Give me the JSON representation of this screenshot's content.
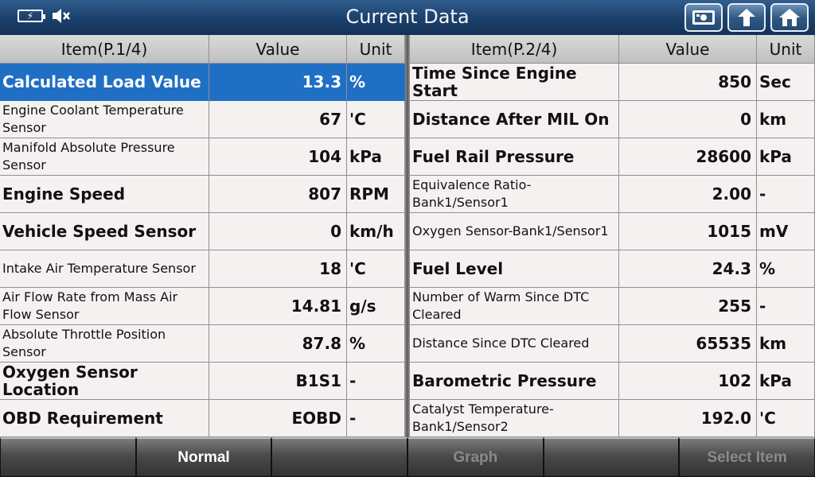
{
  "title": "Current Data",
  "status": {
    "battery_icon": "battery-charging-icon",
    "mute_icon": "speaker-muted-icon"
  },
  "toolbar_icons": [
    "screenshot-icon",
    "back-arrow-icon",
    "home-icon"
  ],
  "left_table": {
    "headers": {
      "item": "Item(P.1/4)",
      "value": "Value",
      "unit": "Unit"
    },
    "rows": [
      {
        "item": "Calculated Load Value",
        "value": "13.3",
        "unit": "%",
        "size": "big",
        "selected": true
      },
      {
        "item": "Engine Coolant Temperature Sensor",
        "value": "67",
        "unit": "'C",
        "size": "small"
      },
      {
        "item": "Manifold Absolute Pressure Sensor",
        "value": "104",
        "unit": "kPa",
        "size": "small"
      },
      {
        "item": "Engine Speed",
        "value": "807",
        "unit": "RPM",
        "size": "big"
      },
      {
        "item": "Vehicle Speed Sensor",
        "value": "0",
        "unit": "km/h",
        "size": "big"
      },
      {
        "item": "Intake Air Temperature Sensor",
        "value": "18",
        "unit": "'C",
        "size": "small"
      },
      {
        "item": "Air Flow Rate from Mass Air Flow Sensor",
        "value": "14.81",
        "unit": "g/s",
        "size": "small"
      },
      {
        "item": "Absolute Throttle Position Sensor",
        "value": "87.8",
        "unit": "%",
        "size": "small"
      },
      {
        "item": "Oxygen Sensor Location",
        "value": "B1S1",
        "unit": "-",
        "size": "big"
      },
      {
        "item": "OBD Requirement",
        "value": "EOBD",
        "unit": "-",
        "size": "big"
      }
    ]
  },
  "right_table": {
    "headers": {
      "item": "Item(P.2/4)",
      "value": "Value",
      "unit": "Unit"
    },
    "rows": [
      {
        "item": "Time Since Engine Start",
        "value": "850",
        "unit": "Sec",
        "size": "big"
      },
      {
        "item": "Distance After MIL On",
        "value": "0",
        "unit": "km",
        "size": "big"
      },
      {
        "item": "Fuel Rail Pressure",
        "value": "28600",
        "unit": "kPa",
        "size": "big"
      },
      {
        "item": "Equivalence Ratio-Bank1/Sensor1",
        "value": "2.00",
        "unit": "-",
        "size": "small"
      },
      {
        "item": "Oxygen Sensor-Bank1/Sensor1",
        "value": "1015",
        "unit": "mV",
        "size": "small"
      },
      {
        "item": "Fuel Level",
        "value": "24.3",
        "unit": "%",
        "size": "big"
      },
      {
        "item": "Number of Warm Since DTC Cleared",
        "value": "255",
        "unit": "-",
        "size": "small"
      },
      {
        "item": "Distance Since DTC Cleared",
        "value": "65535",
        "unit": "km",
        "size": "small"
      },
      {
        "item": "Barometric Pressure",
        "value": "102",
        "unit": "kPa",
        "size": "big"
      },
      {
        "item": "Catalyst Temperature-Bank1/Sensor2",
        "value": "192.0",
        "unit": "'C",
        "size": "small"
      }
    ]
  },
  "bottom_buttons": [
    {
      "label": "",
      "state": "active"
    },
    {
      "label": "Normal",
      "state": "active"
    },
    {
      "label": "",
      "state": "active"
    },
    {
      "label": "Graph",
      "state": "disabled"
    },
    {
      "label": "",
      "state": "active"
    },
    {
      "label": "Select Item",
      "state": "disabled"
    }
  ]
}
